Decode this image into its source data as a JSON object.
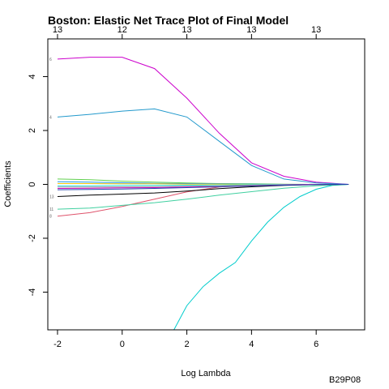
{
  "chart_data": {
    "type": "line",
    "title": "Boston: Elastic Net Trace Plot of Final Model",
    "xlabel": "Log Lambda",
    "ylabel": "Coefficients",
    "xlim": [
      -2.3,
      7.5
    ],
    "ylim": [
      -5.4,
      5.4
    ],
    "x_ticks": [
      -2,
      0,
      2,
      4,
      6
    ],
    "y_ticks": [
      -4,
      -2,
      0,
      2,
      4
    ],
    "top_axis": {
      "ticks": [
        -2,
        0,
        2,
        4,
        6
      ],
      "labels": [
        "13",
        "12",
        "13",
        "13",
        "13"
      ]
    },
    "grid": false,
    "series": [
      {
        "name": "6",
        "color": "#CC00CC",
        "x": [
          -2.0,
          -1.0,
          0.0,
          1.0,
          2.0,
          3.0,
          4.0,
          5.0,
          6.0,
          7.0
        ],
        "y": [
          4.65,
          4.72,
          4.72,
          4.3,
          3.2,
          1.9,
          0.8,
          0.3,
          0.08,
          0.0
        ]
      },
      {
        "name": "4",
        "color": "#2299CC",
        "x": [
          -2.0,
          -1.0,
          0.0,
          1.0,
          2.0,
          3.0,
          4.0,
          5.0,
          6.0,
          7.0
        ],
        "y": [
          2.5,
          2.6,
          2.72,
          2.8,
          2.5,
          1.6,
          0.7,
          0.2,
          0.05,
          0.0
        ]
      },
      {
        "name": "",
        "color": "#00CCCC",
        "x": [
          1.6,
          2.0,
          2.5,
          3.0,
          3.5,
          4.0,
          4.5,
          5.0,
          5.5,
          6.0,
          6.5,
          7.0
        ],
        "y": [
          -5.4,
          -4.5,
          -3.8,
          -3.3,
          -2.9,
          -2.1,
          -1.4,
          -0.85,
          -0.45,
          -0.18,
          -0.04,
          0.0
        ]
      },
      {
        "name": "8",
        "color": "#DF536B",
        "x": [
          -2.0,
          -1.0,
          0.0,
          1.0,
          2.0,
          3.0,
          4.0,
          5.0,
          6.0,
          7.0
        ],
        "y": [
          -1.18,
          -1.05,
          -0.82,
          -0.55,
          -0.28,
          -0.1,
          -0.03,
          -0.01,
          0.0,
          0.0
        ]
      },
      {
        "name": "11",
        "color": "#40D0A0",
        "x": [
          -2.0,
          -1.0,
          0.0,
          1.0,
          2.0,
          3.0,
          4.0,
          5.0,
          6.0,
          7.0
        ],
        "y": [
          -0.92,
          -0.88,
          -0.78,
          -0.68,
          -0.55,
          -0.4,
          -0.27,
          -0.14,
          -0.05,
          0.0
        ]
      },
      {
        "name": "13",
        "color": "#000000",
        "x": [
          -2.0,
          -1.0,
          0.0,
          1.0,
          2.0,
          3.0,
          4.0,
          5.0,
          6.0,
          7.0
        ],
        "y": [
          -0.45,
          -0.4,
          -0.36,
          -0.32,
          -0.25,
          -0.16,
          -0.09,
          -0.04,
          -0.01,
          0.0
        ]
      },
      {
        "name": "",
        "color": "#61D04F",
        "x": [
          -2.0,
          -1.0,
          0.0,
          1.0,
          2.0,
          3.0,
          4.0,
          5.0,
          6.0,
          7.0
        ],
        "y": [
          0.2,
          0.17,
          0.12,
          0.08,
          0.05,
          0.03,
          0.02,
          0.01,
          0.0,
          0.0
        ]
      },
      {
        "name": "",
        "color": "#2297E6",
        "x": [
          -2.0,
          -1.0,
          0.0,
          1.0,
          2.0,
          3.0,
          4.0,
          5.0,
          6.0,
          7.0
        ],
        "y": [
          0.1,
          0.08,
          0.06,
          0.04,
          0.03,
          0.02,
          0.01,
          0.0,
          0.0,
          0.0
        ]
      },
      {
        "name": "",
        "color": "#F5C710",
        "x": [
          -2.0,
          -1.0,
          0.0,
          1.0,
          2.0,
          3.0,
          4.0,
          5.0,
          6.0,
          7.0
        ],
        "y": [
          0.03,
          0.03,
          0.02,
          0.02,
          0.01,
          0.01,
          0.0,
          0.0,
          0.0,
          0.0
        ]
      },
      {
        "name": "",
        "color": "#28E2E5",
        "x": [
          -2.0,
          -1.0,
          0.0,
          1.0,
          2.0,
          3.0,
          4.0,
          5.0,
          6.0,
          7.0
        ],
        "y": [
          -0.05,
          -0.05,
          -0.04,
          -0.04,
          -0.03,
          -0.02,
          -0.01,
          0.0,
          0.0,
          0.0
        ]
      },
      {
        "name": "",
        "color": "#9E9E9E",
        "x": [
          -2.0,
          -1.0,
          0.0,
          1.0,
          2.0,
          3.0,
          4.0,
          5.0,
          6.0,
          7.0
        ],
        "y": [
          -0.1,
          -0.1,
          -0.09,
          -0.08,
          -0.07,
          -0.05,
          -0.03,
          -0.01,
          0.0,
          0.0
        ]
      },
      {
        "name": "",
        "color": "#CD0BBC",
        "x": [
          -2.0,
          -1.0,
          0.0,
          1.0,
          2.0,
          3.0,
          4.0,
          5.0,
          6.0,
          7.0
        ],
        "y": [
          -0.15,
          -0.14,
          -0.13,
          -0.12,
          -0.1,
          -0.08,
          -0.05,
          -0.02,
          0.0,
          0.0
        ]
      },
      {
        "name": "",
        "color": "#2244AA",
        "x": [
          -2.0,
          -1.0,
          0.0,
          1.0,
          2.0,
          3.0,
          4.0,
          5.0,
          6.0,
          7.0
        ],
        "y": [
          -0.2,
          -0.19,
          -0.17,
          -0.15,
          -0.12,
          -0.09,
          -0.06,
          -0.03,
          -0.01,
          0.0
        ]
      }
    ],
    "annotation": "B29P08"
  }
}
